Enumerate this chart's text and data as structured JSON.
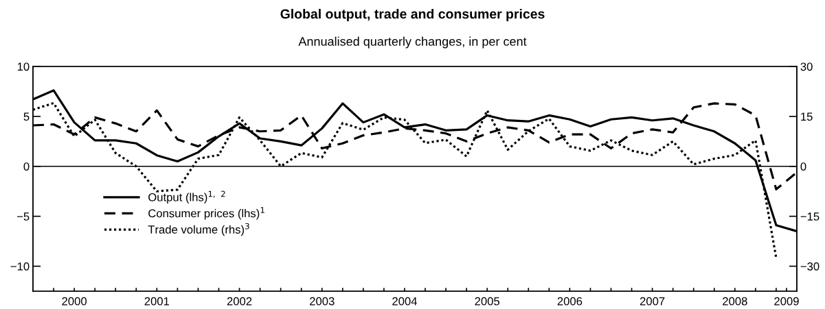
{
  "chart_data": {
    "type": "line",
    "title": "Global output, trade and consumer prices",
    "subtitle": "Annualised quarterly changes, in per cent",
    "x": [
      2000.0,
      2000.25,
      2000.5,
      2000.75,
      2001.0,
      2001.25,
      2001.5,
      2001.75,
      2002.0,
      2002.25,
      2002.5,
      2002.75,
      2003.0,
      2003.25,
      2003.5,
      2003.75,
      2004.0,
      2004.25,
      2004.5,
      2004.75,
      2005.0,
      2005.25,
      2005.5,
      2005.75,
      2006.0,
      2006.25,
      2006.5,
      2006.75,
      2007.0,
      2007.25,
      2007.5,
      2007.75,
      2008.0,
      2008.25,
      2008.5,
      2008.75,
      2009.0,
      2009.25
    ],
    "series": [
      {
        "name": "Output (lhs)$^{1,}$ $^{2}$",
        "color": "#000000",
        "line_style": "solid",
        "values": [
          6.7,
          7.6,
          4.4,
          2.6,
          2.6,
          2.3,
          1.1,
          0.5,
          1.4,
          3.0,
          4.3,
          2.8,
          2.5,
          2.1,
          3.8,
          6.3,
          4.4,
          5.2,
          3.9,
          4.2,
          3.6,
          3.7,
          5.1,
          4.6,
          4.5,
          5.1,
          4.7,
          4.0,
          4.7,
          4.9,
          4.6,
          4.8,
          4.1,
          3.5,
          2.3,
          0.6,
          -5.9,
          -6.5
        ]
      },
      {
        "name": "Consumer prices (lhs)$^{1}$",
        "color": "#000000",
        "line_style": "dashed",
        "values": [
          4.1,
          4.2,
          3.2,
          4.9,
          4.3,
          3.5,
          5.6,
          2.7,
          2.0,
          3.1,
          3.9,
          3.5,
          3.6,
          5.1,
          1.8,
          2.3,
          3.1,
          3.4,
          3.8,
          3.6,
          3.3,
          2.5,
          3.3,
          3.9,
          3.6,
          2.4,
          3.2,
          3.2,
          1.8,
          3.3,
          3.7,
          3.4,
          5.9,
          6.3,
          6.2,
          5.1,
          -2.3,
          -0.6
        ]
      },
      {
        "name": "Trade volume (rhs)$^{3}$",
        "color": "#000000",
        "line_style": "dotted",
        "axis": "y2",
        "values": [
          17,
          19,
          9,
          14,
          4,
          0,
          -7.5,
          -7,
          2.3,
          3.4,
          14.7,
          7.8,
          0,
          4,
          2.7,
          13,
          11,
          14.7,
          14,
          7,
          8,
          3,
          16.8,
          5,
          10.6,
          14.3,
          6,
          4.7,
          7.8,
          4.7,
          3.4,
          7.5,
          0.6,
          2.3,
          3.4,
          7.8,
          -27.5,
          null
        ]
      }
    ],
    "xlim": [
      2000,
      2009.25
    ],
    "xticks": [
      {
        "value": 2000.25,
        "label": null
      },
      {
        "value": 2000.5,
        "label": "2000"
      },
      {
        "value": 2000.75,
        "label": null
      },
      {
        "value": 2001,
        "label": null
      },
      {
        "value": 2001.25,
        "label": null
      },
      {
        "value": 2001.5,
        "label": "2001"
      },
      {
        "value": 2001.75,
        "label": null
      },
      {
        "value": 2002,
        "label": null
      },
      {
        "value": 2002.25,
        "label": null
      },
      {
        "value": 2002.5,
        "label": "2002"
      },
      {
        "value": 2002.75,
        "label": null
      },
      {
        "value": 2003,
        "label": null
      },
      {
        "value": 2003.25,
        "label": null
      },
      {
        "value": 2003.5,
        "label": "2003"
      },
      {
        "value": 2003.75,
        "label": null
      },
      {
        "value": 2004,
        "label": null
      },
      {
        "value": 2004.25,
        "label": null
      },
      {
        "value": 2004.5,
        "label": "2004"
      },
      {
        "value": 2004.75,
        "label": null
      },
      {
        "value": 2005,
        "label": null
      },
      {
        "value": 2005.25,
        "label": null
      },
      {
        "value": 2005.5,
        "label": "2005"
      },
      {
        "value": 2005.75,
        "label": null
      },
      {
        "value": 2006,
        "label": null
      },
      {
        "value": 2006.25,
        "label": null
      },
      {
        "value": 2006.5,
        "label": "2006"
      },
      {
        "value": 2006.75,
        "label": null
      },
      {
        "value": 2007,
        "label": null
      },
      {
        "value": 2007.25,
        "label": null
      },
      {
        "value": 2007.5,
        "label": "2007"
      },
      {
        "value": 2007.75,
        "label": null
      },
      {
        "value": 2008,
        "label": null
      },
      {
        "value": 2008.25,
        "label": null
      },
      {
        "value": 2008.5,
        "label": "2008"
      },
      {
        "value": 2008.75,
        "label": null
      },
      {
        "value": 2009,
        "label": null
      },
      {
        "value": 2009.125,
        "label": "2009"
      }
    ],
    "ylim": [
      -12.5,
      10
    ],
    "yticks": [
      -10,
      -5,
      0,
      5,
      10
    ],
    "y2lim": [
      -37.5,
      30
    ],
    "y2ticks": [
      -30,
      -15,
      0,
      15,
      30
    ],
    "ref_lines": [
      {
        "axis": "y",
        "value": 0,
        "color": "#000000"
      }
    ],
    "grid": false,
    "legend": "lower left"
  }
}
